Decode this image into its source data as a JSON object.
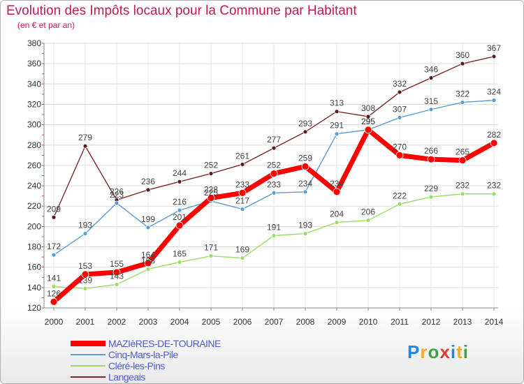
{
  "header": {
    "title": "Evolution des Impôts locaux pour la Commune par Habitant",
    "subtitle": "(en € et par an)"
  },
  "logo": {
    "text": "Proxiti",
    "letters": [
      "P",
      "r",
      "o",
      "x",
      "i",
      "t",
      "i"
    ]
  },
  "chart_data": {
    "type": "line",
    "title": "Evolution des Impôts locaux pour la Commune par Habitant",
    "subtitle": "(en € et par an)",
    "categories": [
      "2000",
      "2001",
      "2002",
      "2003",
      "2004",
      "2005",
      "2006",
      "2007",
      "2008",
      "2009",
      "2010",
      "2011",
      "2012",
      "2013",
      "2014"
    ],
    "ylim": [
      120,
      380
    ],
    "yticks": [
      120,
      140,
      160,
      180,
      200,
      220,
      240,
      260,
      280,
      300,
      320,
      340,
      360,
      380
    ],
    "grid": true,
    "legend_position": "bottom-left",
    "series": [
      {
        "name": "MAZIèRES-DE-TOURAINE",
        "color": "#ff0000",
        "values": [
          126,
          153,
          155,
          164,
          201,
          228,
          233,
          252,
          259,
          234,
          295,
          270,
          266,
          265,
          282
        ],
        "labels": [
          "126",
          "153",
          "155",
          "164",
          "201",
          "228",
          "233",
          "252",
          "259",
          "234",
          "295",
          "270",
          "266",
          "265",
          "282"
        ]
      },
      {
        "name": "Cinq-Mars-la-Pile",
        "color": "#5b9bd5",
        "values": [
          172,
          193,
          223,
          199,
          216,
          225,
          217,
          233,
          234,
          291,
          295,
          307,
          315,
          322,
          324
        ],
        "labels": [
          "172",
          "193",
          "223",
          "199",
          "216",
          "225",
          "217",
          "233",
          "234",
          "291",
          "295",
          "307",
          "315",
          "322",
          "324"
        ]
      },
      {
        "name": "Cléré-les-Pins",
        "color": "#99dd66",
        "values": [
          141,
          139,
          143,
          158,
          165,
          171,
          169,
          191,
          193,
          204,
          206,
          222,
          229,
          232,
          232
        ],
        "labels": [
          "141",
          "139",
          "143",
          "158",
          "165",
          "171",
          "169",
          "191",
          "193",
          "204",
          "206",
          "222",
          "229",
          "232",
          "232"
        ]
      },
      {
        "name": "Langeais",
        "color": "#7a2a2a",
        "values": [
          209,
          279,
          226,
          236,
          244,
          252,
          261,
          277,
          293,
          313,
          308,
          332,
          346,
          360,
          367
        ],
        "labels": [
          "209",
          "279",
          "226",
          "236",
          "244",
          "252",
          "261",
          "277",
          "293",
          "313",
          "308",
          "332",
          "346",
          "360",
          "367"
        ]
      }
    ]
  }
}
